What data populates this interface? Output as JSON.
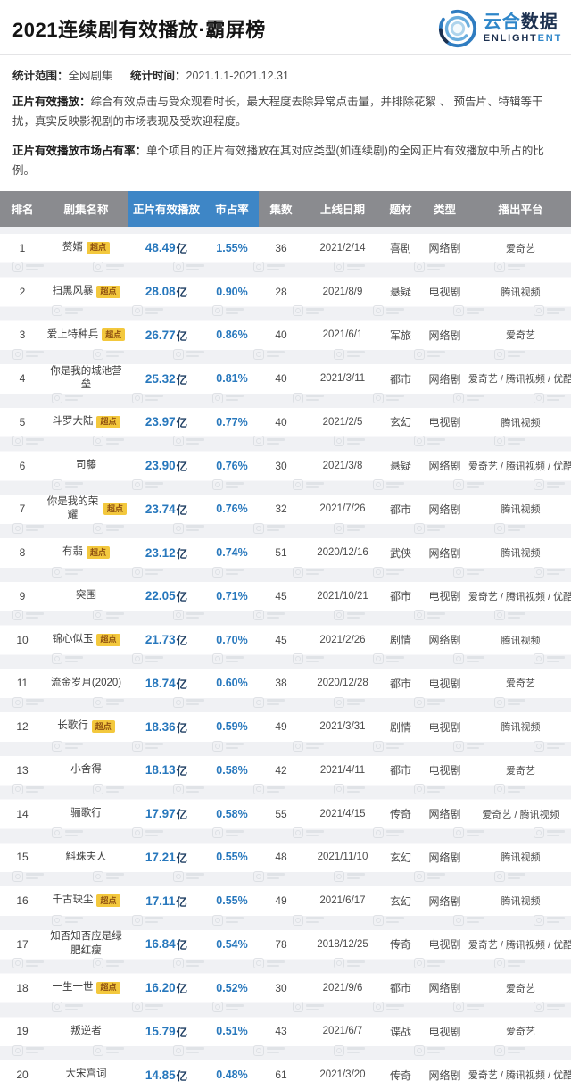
{
  "page": {
    "title": "2021连续剧有效播放·霸屏榜",
    "logo": {
      "cn_blue": "云合",
      "cn_dark": "数据",
      "en_dark": "ENLIGHT",
      "en_blue": "ENT"
    }
  },
  "meta": {
    "scope_label": "统计范围：",
    "scope_value": "全网剧集",
    "time_label": "统计时间：",
    "time_value": "2021.1.1-2021.12.31"
  },
  "definitions": [
    {
      "term": "正片有效播放：",
      "desc": "综合有效点击与受众观看时长，最大程度去除异常点击量，并排除花絮 、 预告片、特辑等干扰，真实反映影视剧的市场表现及受欢迎程度。"
    },
    {
      "term": "正片有效播放市场占有率：",
      "desc": "单个项目的正片有效播放在其对应类型(如连续剧)的全网正片有效播放中所占的比例。"
    }
  ],
  "badge_label": "超点",
  "unit_label": "亿",
  "colors": {
    "accent_blue": "#3e86c6",
    "header_gray": "#8a8b8f",
    "number_blue": "#2878bd",
    "unit_navy": "#1f3f63",
    "badge_bg": "#f3c83d",
    "badge_text": "#8d4f12",
    "stripe_gray": "#f0f1f4",
    "logo_blue": "#2e86c9",
    "logo_navy": "#1d3150"
  },
  "chart_data": {
    "type": "table",
    "title": "2021连续剧有效播放·霸屏榜",
    "columns": [
      "排名",
      "剧集名称",
      "正片有效播放",
      "市占率",
      "集数",
      "上线日期",
      "题材",
      "类型",
      "播出平台"
    ],
    "rows": [
      {
        "rank": "1",
        "name": "赘婿",
        "super_point": true,
        "views": "48.49",
        "share": "1.55%",
        "episodes": "36",
        "date": "2021/2/14",
        "genre": "喜剧",
        "type": "网络剧",
        "platform": "爱奇艺"
      },
      {
        "rank": "2",
        "name": "扫黑风暴",
        "super_point": true,
        "views": "28.08",
        "share": "0.90%",
        "episodes": "28",
        "date": "2021/8/9",
        "genre": "悬疑",
        "type": "电视剧",
        "platform": "腾讯视频"
      },
      {
        "rank": "3",
        "name": "爱上特种兵",
        "super_point": true,
        "views": "26.77",
        "share": "0.86%",
        "episodes": "40",
        "date": "2021/6/1",
        "genre": "军旅",
        "type": "网络剧",
        "platform": "爱奇艺"
      },
      {
        "rank": "4",
        "name": "你是我的城池营垒",
        "super_point": false,
        "views": "25.32",
        "share": "0.81%",
        "episodes": "40",
        "date": "2021/3/11",
        "genre": "都市",
        "type": "网络剧",
        "platform": "爱奇艺 / 腾讯视频 / 优酷"
      },
      {
        "rank": "5",
        "name": "斗罗大陆",
        "super_point": true,
        "views": "23.97",
        "share": "0.77%",
        "episodes": "40",
        "date": "2021/2/5",
        "genre": "玄幻",
        "type": "电视剧",
        "platform": "腾讯视频"
      },
      {
        "rank": "6",
        "name": "司藤",
        "super_point": false,
        "views": "23.90",
        "share": "0.76%",
        "episodes": "30",
        "date": "2021/3/8",
        "genre": "悬疑",
        "type": "网络剧",
        "platform": "爱奇艺 / 腾讯视频 / 优酷"
      },
      {
        "rank": "7",
        "name": "你是我的荣耀",
        "super_point": true,
        "views": "23.74",
        "share": "0.76%",
        "episodes": "32",
        "date": "2021/7/26",
        "genre": "都市",
        "type": "网络剧",
        "platform": "腾讯视频"
      },
      {
        "rank": "8",
        "name": "有翡",
        "super_point": true,
        "views": "23.12",
        "share": "0.74%",
        "episodes": "51",
        "date": "2020/12/16",
        "genre": "武侠",
        "type": "网络剧",
        "platform": "腾讯视频"
      },
      {
        "rank": "9",
        "name": "突围",
        "super_point": false,
        "views": "22.05",
        "share": "0.71%",
        "episodes": "45",
        "date": "2021/10/21",
        "genre": "都市",
        "type": "电视剧",
        "platform": "爱奇艺 / 腾讯视频 / 优酷"
      },
      {
        "rank": "10",
        "name": "锦心似玉",
        "super_point": true,
        "views": "21.73",
        "share": "0.70%",
        "episodes": "45",
        "date": "2021/2/26",
        "genre": "剧情",
        "type": "网络剧",
        "platform": "腾讯视频"
      },
      {
        "rank": "11",
        "name": "流金岁月(2020)",
        "super_point": false,
        "views": "18.74",
        "share": "0.60%",
        "episodes": "38",
        "date": "2020/12/28",
        "genre": "都市",
        "type": "电视剧",
        "platform": "爱奇艺"
      },
      {
        "rank": "12",
        "name": "长歌行",
        "super_point": true,
        "views": "18.36",
        "share": "0.59%",
        "episodes": "49",
        "date": "2021/3/31",
        "genre": "剧情",
        "type": "电视剧",
        "platform": "腾讯视频"
      },
      {
        "rank": "13",
        "name": "小舍得",
        "super_point": false,
        "views": "18.13",
        "share": "0.58%",
        "episodes": "42",
        "date": "2021/4/11",
        "genre": "都市",
        "type": "电视剧",
        "platform": "爱奇艺"
      },
      {
        "rank": "14",
        "name": "骊歌行",
        "super_point": false,
        "views": "17.97",
        "share": "0.58%",
        "episodes": "55",
        "date": "2021/4/15",
        "genre": "传奇",
        "type": "网络剧",
        "platform": "爱奇艺 / 腾讯视频"
      },
      {
        "rank": "15",
        "name": "斛珠夫人",
        "super_point": false,
        "views": "17.21",
        "share": "0.55%",
        "episodes": "48",
        "date": "2021/11/10",
        "genre": "玄幻",
        "type": "网络剧",
        "platform": "腾讯视频"
      },
      {
        "rank": "16",
        "name": "千古玦尘",
        "super_point": true,
        "views": "17.11",
        "share": "0.55%",
        "episodes": "49",
        "date": "2021/6/17",
        "genre": "玄幻",
        "type": "网络剧",
        "platform": "腾讯视频"
      },
      {
        "rank": "17",
        "name": "知否知否应是绿肥红瘦",
        "super_point": false,
        "views": "16.84",
        "share": "0.54%",
        "episodes": "78",
        "date": "2018/12/25",
        "genre": "传奇",
        "type": "电视剧",
        "platform": "爱奇艺 / 腾讯视频 / 优酷"
      },
      {
        "rank": "18",
        "name": "一生一世",
        "super_point": true,
        "views": "16.20",
        "share": "0.52%",
        "episodes": "30",
        "date": "2021/9/6",
        "genre": "都市",
        "type": "网络剧",
        "platform": "爱奇艺"
      },
      {
        "rank": "19",
        "name": "叛逆者",
        "super_point": false,
        "views": "15.79",
        "share": "0.51%",
        "episodes": "43",
        "date": "2021/6/7",
        "genre": "谍战",
        "type": "电视剧",
        "platform": "爱奇艺"
      },
      {
        "rank": "20",
        "name": "大宋宫词",
        "super_point": false,
        "views": "14.85",
        "share": "0.48%",
        "episodes": "61",
        "date": "2021/3/20",
        "genre": "传奇",
        "type": "网络剧",
        "platform": "爱奇艺 / 腾讯视频 / 优酷"
      }
    ]
  }
}
